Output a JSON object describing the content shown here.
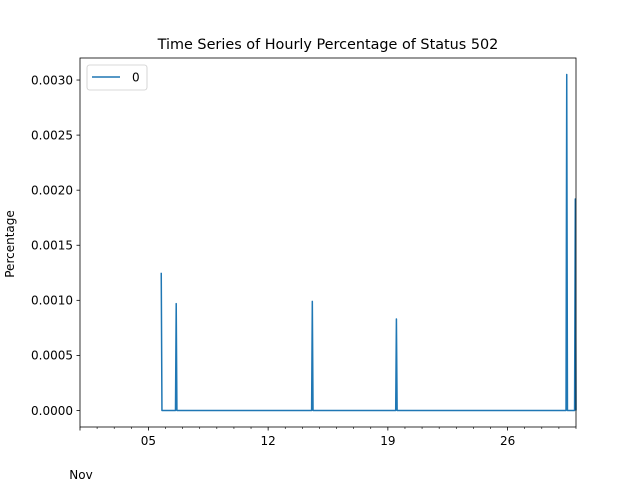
{
  "chart_data": {
    "type": "line",
    "title": "Time Series of Hourly Percentage of Status 502",
    "xlabel": "",
    "ylabel": "Percentage",
    "x_month_label": "Nov",
    "x_tick_labels": [
      "05",
      "12",
      "19",
      "26"
    ],
    "xlim": [
      "2023-11-01T00:00",
      "2023-11-30T00:00"
    ],
    "ylim": [
      -0.00015,
      0.0032
    ],
    "y_ticks": [
      0.0,
      0.0005,
      0.001,
      0.0015,
      0.002,
      0.0025,
      0.003
    ],
    "y_tick_labels": [
      "0.0000",
      "0.0005",
      "0.0010",
      "0.0015",
      "0.0020",
      "0.0025",
      "0.0030"
    ],
    "grid": false,
    "legend_position": "top-left",
    "series": [
      {
        "name": "0",
        "color": "#1f77b4",
        "points": [
          [
            "2023-11-05T18:00",
            0.00125
          ],
          [
            "2023-11-05T19:00",
            0.0
          ],
          [
            "2023-11-06T14:00",
            0.0
          ],
          [
            "2023-11-06T15:00",
            0.00097
          ],
          [
            "2023-11-06T16:00",
            0.0
          ],
          [
            "2023-11-14T13:00",
            0.0
          ],
          [
            "2023-11-14T14:00",
            0.00099
          ],
          [
            "2023-11-14T15:00",
            0.0
          ],
          [
            "2023-11-19T11:00",
            0.0
          ],
          [
            "2023-11-19T12:00",
            0.00083
          ],
          [
            "2023-11-19T13:00",
            0.0
          ],
          [
            "2023-11-29T10:00",
            0.0
          ],
          [
            "2023-11-29T11:00",
            0.00305
          ],
          [
            "2023-11-29T12:00",
            0.0
          ],
          [
            "2023-11-29T22:00",
            0.0
          ],
          [
            "2023-11-29T23:00",
            0.00192
          ],
          [
            "2023-11-30T00:00",
            0.0
          ]
        ]
      }
    ]
  }
}
